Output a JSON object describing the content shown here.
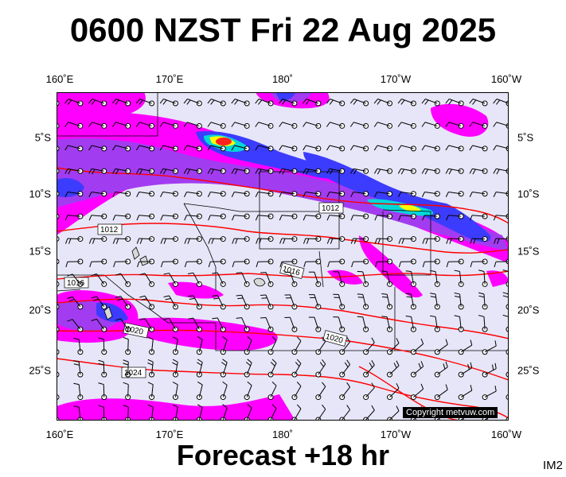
{
  "title": "0600 NZST Fri 22 Aug 2025",
  "footer": "Forecast +18 hr",
  "image_code": "IM2",
  "copyright": "Copyright metvuw.com",
  "lon_labels": [
    "160˚E",
    "170˚E",
    "180˚",
    "170˚W",
    "160˚W"
  ],
  "lat_labels": [
    "5˚S",
    "10˚S",
    "15˚S",
    "20˚S",
    "25˚S"
  ],
  "isobar_labels": [
    "1012",
    "1012",
    "1016",
    "1016",
    "1020",
    "1024",
    "1020"
  ],
  "colors": {
    "background": "#e6e6f8",
    "precip_light": "#ff00ff",
    "precip_med": "#a23cf0",
    "precip_heavy": "#3c3cff",
    "precip_vheavy": "#00d8d8",
    "precip_extreme": "#ffff00",
    "precip_max": "#ff2020",
    "isobar": "#ff0000",
    "border": "#000000"
  }
}
